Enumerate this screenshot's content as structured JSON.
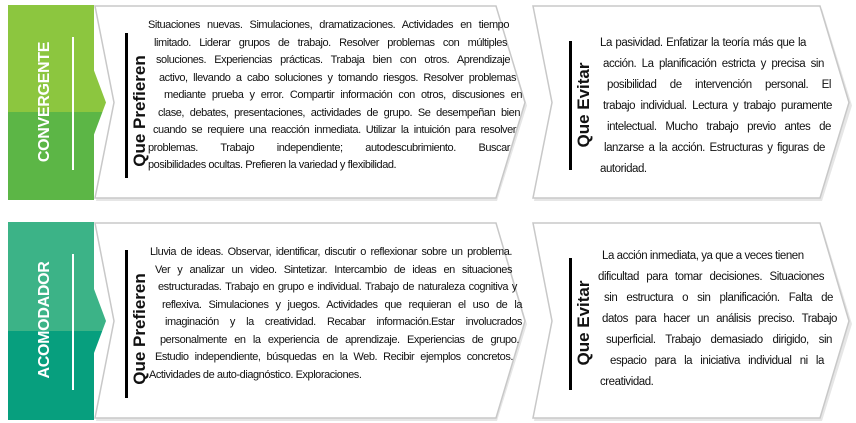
{
  "colors": {
    "convergente_top": "#8cc63f",
    "convergente_bottom": "#5cb646",
    "acomodador_top": "#3cb387",
    "acomodador_bottom": "#079f7e",
    "panel_border": "#c8c8c8"
  },
  "rows": [
    {
      "style": "CONVERGENTE",
      "prefer_heading": "Que Prefieren",
      "prefer_lines": [
        "Situaciones nuevas. Simulaciones, dramatizaciones. Actividades en tiempo",
        "limitado. Liderar grupos de trabajo. Resolver problemas con múltiples",
        "soluciones. Experiencias prácticas. Trabaja bien con otros. Aprendizaje",
        "activo, llevando a cabo soluciones y tomando riesgos. Resolver problemas",
        "mediante prueba y error. Compartir información con otros, discusiones en",
        "clase, debates, presentaciones, actividades de grupo. Se desempeñan bien",
        "cuando se requiere una reacción inmediata. Utilizar la intuición para resolver",
        "problemas. Trabajo independiente; autodescubrimiento. Buscar",
        "posibilidades ocultas. Prefieren la variedad y flexibilidad."
      ],
      "avoid_heading": "Que Evitar",
      "avoid_lines": [
        "La pasividad. Enfatizar la teoría más que la",
        "acción. La planificación estricta y precisa sin",
        "posibilidad de intervención personal. El",
        "trabajo individual. Lectura y trabajo puramente",
        "intelectual. Mucho trabajo previo antes de",
        "lanzarse a la acción. Estructuras y figuras de",
        "autoridad."
      ]
    },
    {
      "style": "ACOMODADOR",
      "prefer_heading": "Que Prefieren",
      "prefer_lines": [
        "Lluvia de ideas. Observar, identificar, discutir o reflexionar sobre un problema.",
        "Ver y analizar un video. Sintetizar. Intercambio de ideas en situaciones",
        "estructuradas. Trabajo en grupo e individual. Trabajo de naturaleza cognitiva y",
        "reflexiva. Simulaciones y juegos.  Actividades que requieran el uso de la",
        "imaginación y la creatividad. Recabar información.Estar involucrados",
        "personalmente en la experiencia de aprendizaje. Experiencias de grupo.",
        "Estudio independiente, búsquedas en la Web. Recibir ejemplos concretos.",
        "Actividades de auto-diagnóstico. Exploraciones."
      ],
      "avoid_heading": "Que Evitar",
      "avoid_lines": [
        "La acción inmediata, ya que a veces tienen",
        "dificultad para tomar decisiones. Situaciones",
        "sin estructura o sin planificación. Falta de",
        "datos para hacer un análisis preciso. Trabajo",
        "superficial. Trabajo demasiado dirigido, sin",
        "espacio para la iniciativa individual ni la",
        "creatividad."
      ]
    }
  ]
}
